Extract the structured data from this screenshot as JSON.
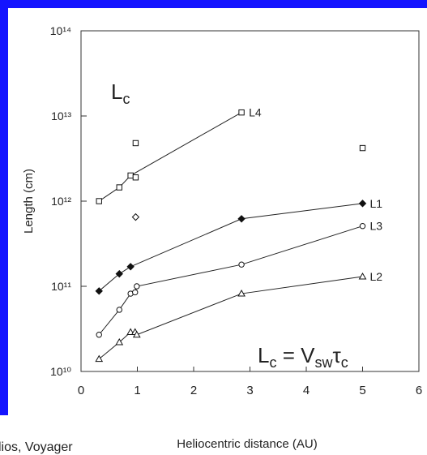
{
  "chart_data": {
    "type": "line",
    "log_y": true,
    "xlabel": "Heliocentric distance (AU)",
    "ylabel": "Length (cm)",
    "xlim": [
      0,
      6
    ],
    "xticks": [
      0,
      1,
      2,
      3,
      4,
      5,
      6
    ],
    "ylim": [
      10000000000.0,
      100000000000000.0
    ],
    "yticks": [
      {
        "value": 10000000000.0,
        "label": "10¹⁰"
      },
      {
        "value": 100000000000.0,
        "label": "10¹¹"
      },
      {
        "value": 1000000000000.0,
        "label": "10¹²"
      },
      {
        "value": 10000000000000.0,
        "label": "10¹³"
      },
      {
        "value": 100000000000000.0,
        "label": "10¹⁴"
      }
    ],
    "series": [
      {
        "name": "L4",
        "marker": "square",
        "filled": false,
        "line": true,
        "x": [
          0.32,
          0.68,
          0.88,
          2.85
        ],
        "values": [
          1000000000000.0,
          1450000000000.0,
          2000000000000.0,
          11000000000000.0
        ]
      },
      {
        "marker": "square",
        "filled": false,
        "line": false,
        "x": [
          0.97,
          0.97,
          5.0
        ],
        "values": [
          4800000000000.0,
          1900000000000.0,
          4200000000000.0
        ]
      },
      {
        "marker": "diamond",
        "filled": false,
        "line": false,
        "x": [
          0.97
        ],
        "values": [
          650000000000.0
        ]
      },
      {
        "name": "L1",
        "marker": "diamond",
        "filled": true,
        "line": true,
        "x": [
          0.32,
          0.68,
          0.88,
          2.85,
          5.0
        ],
        "values": [
          88000000000.0,
          140000000000.0,
          170000000000.0,
          620000000000.0,
          940000000000.0
        ]
      },
      {
        "name": "L3",
        "marker": "circle",
        "filled": false,
        "line": true,
        "x": [
          0.32,
          0.68,
          0.88,
          0.96,
          0.99,
          2.85,
          5.0
        ],
        "values": [
          27000000000.0,
          53000000000.0,
          82000000000.0,
          85000000000.0,
          100000000000.0,
          180000000000.0,
          510000000000.0
        ]
      },
      {
        "name": "L2",
        "marker": "triangle",
        "filled": false,
        "line": true,
        "x": [
          0.32,
          0.68,
          0.88,
          0.96,
          0.99,
          2.85,
          5.0
        ],
        "values": [
          14000000000.0,
          22000000000.0,
          29000000000.0,
          29000000000.0,
          27000000000.0,
          82000000000.0,
          130000000000.0
        ]
      }
    ],
    "annotations": [
      [
        "L",
        "c"
      ],
      [
        "L",
        "c",
        " = V",
        "sw",
        "τ",
        "c"
      ]
    ],
    "footnote": "lios, Voyager"
  }
}
